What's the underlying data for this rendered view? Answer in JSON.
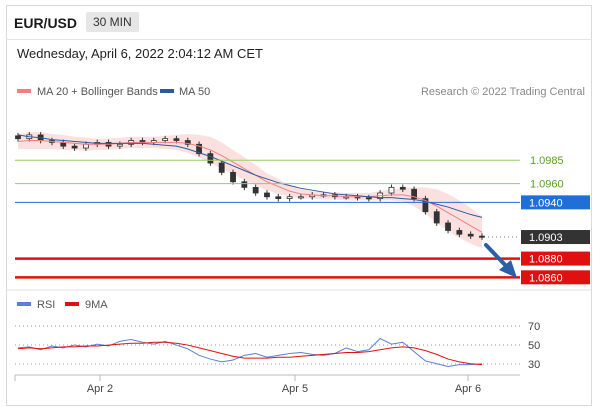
{
  "header": {
    "symbol": "EUR/USD",
    "timeframe": "30 MIN",
    "datetime": "Wednesday, April 6, 2022 2:04:12 AM CET"
  },
  "price_chart": {
    "legend": [
      {
        "name": "MA 20 + Bollinger Bands",
        "color": "#f08080"
      },
      {
        "name": "MA 50",
        "color": "#2a5aa0"
      }
    ],
    "credit": "Research © 2022 Trading Central",
    "levels": [
      {
        "label": "1.0985",
        "value": 1.0985,
        "color": "#9ccc65",
        "text_color": "#5aa020",
        "style": "line"
      },
      {
        "label": "1.0960",
        "value": 1.096,
        "color": "#9ccc65",
        "text_color": "#5aa020",
        "style": "line"
      },
      {
        "label": "1.0940",
        "value": 1.094,
        "color": "#1f6fd6",
        "text_color": "#ffffff",
        "style": "tag"
      },
      {
        "label": "1.0903",
        "value": 1.0903,
        "color": "#333333",
        "text_color": "#ffffff",
        "style": "tag-dotted"
      },
      {
        "label": "1.0880",
        "value": 1.088,
        "color": "#e01010",
        "text_color": "#ffffff",
        "style": "tag-thick"
      },
      {
        "label": "1.0860",
        "value": 1.086,
        "color": "#e01010",
        "text_color": "#ffffff",
        "style": "tag-thick"
      }
    ]
  },
  "rsi_chart": {
    "legend": [
      {
        "name": "RSI",
        "color": "#5a7fd6"
      },
      {
        "name": "9MA",
        "color": "#e01010"
      }
    ],
    "levels": [
      "70",
      "50",
      "30"
    ]
  },
  "x_axis": {
    "labels": [
      "Apr 2",
      "Apr 5",
      "Apr 6"
    ]
  },
  "chart_data": [
    {
      "type": "line",
      "title": "EUR/USD 30 MIN",
      "ylim": [
        1.0855,
        1.1045
      ],
      "x_axis": "bar index",
      "series": [
        {
          "name": "Price",
          "values": [
            1.1008,
            1.1012,
            1.1006,
            1.1004,
            1.1,
            1.0998,
            1.1002,
            1.1004,
            1.1,
            1.1002,
            1.1006,
            1.1004,
            1.1006,
            1.1008,
            1.1006,
            1.1002,
            1.0992,
            1.0982,
            1.0972,
            1.0962,
            1.0956,
            1.095,
            1.0946,
            1.0944,
            1.0946,
            1.0946,
            1.0948,
            1.0948,
            1.0946,
            1.0946,
            1.0945,
            1.0944,
            1.095,
            1.0956,
            1.0954,
            1.0944,
            1.093,
            1.0918,
            1.091,
            1.0906,
            1.0904,
            1.0903
          ]
        },
        {
          "name": "MA 20",
          "values": [
            1.1005,
            1.1006,
            1.1006,
            1.1005,
            1.1004,
            1.1003,
            1.1002,
            1.1002,
            1.1002,
            1.1003,
            1.1004,
            1.1004,
            1.1004,
            1.1004,
            1.1004,
            1.1003,
            1.1,
            1.0996,
            1.099,
            1.0983,
            1.0976,
            1.0969,
            1.0962,
            1.0957,
            1.0952,
            1.0949,
            1.0948,
            1.0947,
            1.0947,
            1.0946,
            1.0946,
            1.0946,
            1.0947,
            1.0948,
            1.0948,
            1.0946,
            1.0942,
            1.0936,
            1.0929,
            1.0922,
            1.0915,
            1.0908
          ]
        },
        {
          "name": "MA 50",
          "values": [
            1.1012,
            1.101,
            1.1009,
            1.1007,
            1.1006,
            1.1005,
            1.1004,
            1.1003,
            1.1003,
            1.1003,
            1.1003,
            1.1003,
            1.1002,
            1.1001,
            1.1,
            1.0997,
            1.0993,
            1.0989,
            1.0984,
            1.0979,
            1.0974,
            1.0969,
            1.0965,
            1.0961,
            1.0958,
            1.0955,
            1.0953,
            1.0951,
            1.0949,
            1.0948,
            1.0947,
            1.0946,
            1.0945,
            1.0945,
            1.0944,
            1.0943,
            1.0941,
            1.0938,
            1.0935,
            1.0931,
            1.0927,
            1.0924
          ]
        },
        {
          "name": "Bollinger Band Width",
          "values": [
            8,
            9,
            9,
            8,
            8,
            7,
            7,
            6,
            6,
            6,
            6,
            6,
            6,
            7,
            8,
            10,
            12,
            14,
            14,
            13,
            12,
            11,
            9,
            8,
            6,
            5,
            4,
            4,
            4,
            4,
            4,
            4,
            5,
            6,
            7,
            10,
            14,
            18,
            20,
            20,
            19,
            17
          ]
        }
      ]
    },
    {
      "type": "line",
      "title": "RSI",
      "ylim": [
        20,
        80
      ],
      "series": [
        {
          "name": "RSI",
          "values": [
            48,
            49,
            46,
            50,
            48,
            51,
            49,
            52,
            50,
            55,
            57,
            54,
            52,
            55,
            51,
            47,
            40,
            36,
            33,
            35,
            40,
            42,
            38,
            40,
            42,
            43,
            41,
            40,
            42,
            48,
            44,
            46,
            58,
            52,
            54,
            44,
            34,
            31,
            28,
            30,
            30,
            31
          ]
        },
        {
          "name": "9MA",
          "values": [
            47,
            48,
            47,
            48,
            49,
            49,
            50,
            50,
            51,
            52,
            53,
            53,
            54,
            54,
            53,
            51,
            48,
            45,
            42,
            39,
            37,
            37,
            37,
            38,
            38,
            39,
            40,
            41,
            42,
            43,
            43,
            44,
            46,
            48,
            49,
            48,
            45,
            41,
            36,
            33,
            31,
            30
          ]
        }
      ]
    }
  ]
}
